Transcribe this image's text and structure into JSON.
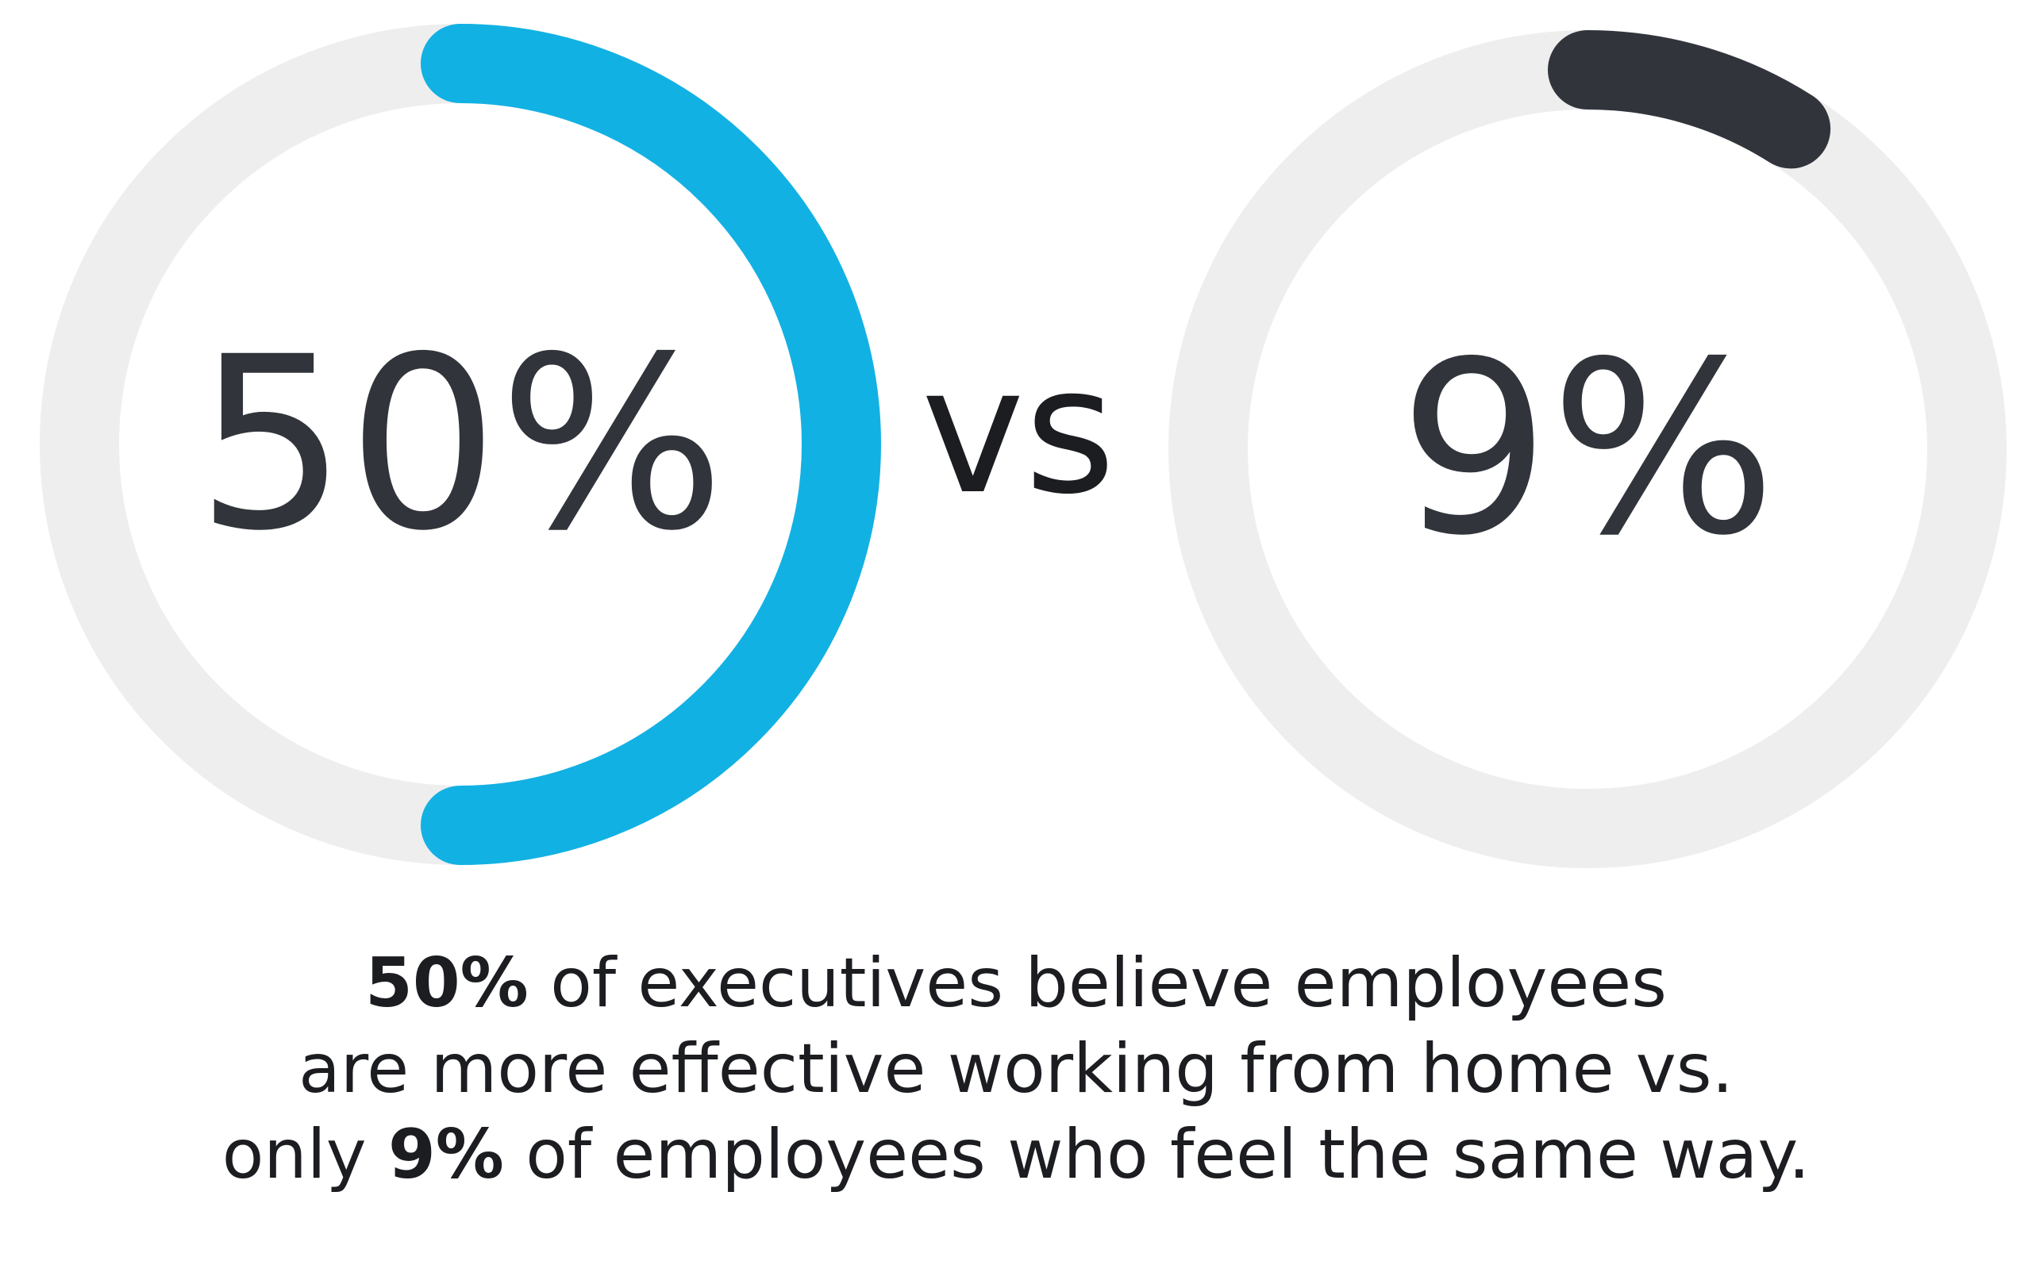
{
  "chart_data": [
    {
      "type": "donut",
      "label": "50%",
      "value": 50,
      "max": 100,
      "color": "#12b1e3",
      "track_color": "#eeeeee"
    },
    {
      "type": "donut",
      "label": "9%",
      "value": 9,
      "max": 100,
      "color": "#31353b",
      "track_color": "#eeeeee"
    }
  ],
  "comparison_label": "vs",
  "text_color": "#31353b",
  "caption": {
    "line1_bold": "50%",
    "line1_rest": " of executives believe employees",
    "line2": "are more effective working from home vs.",
    "line3_start": "only ",
    "line3_bold": "9%",
    "line3_rest": " of employees who feel the same way."
  }
}
